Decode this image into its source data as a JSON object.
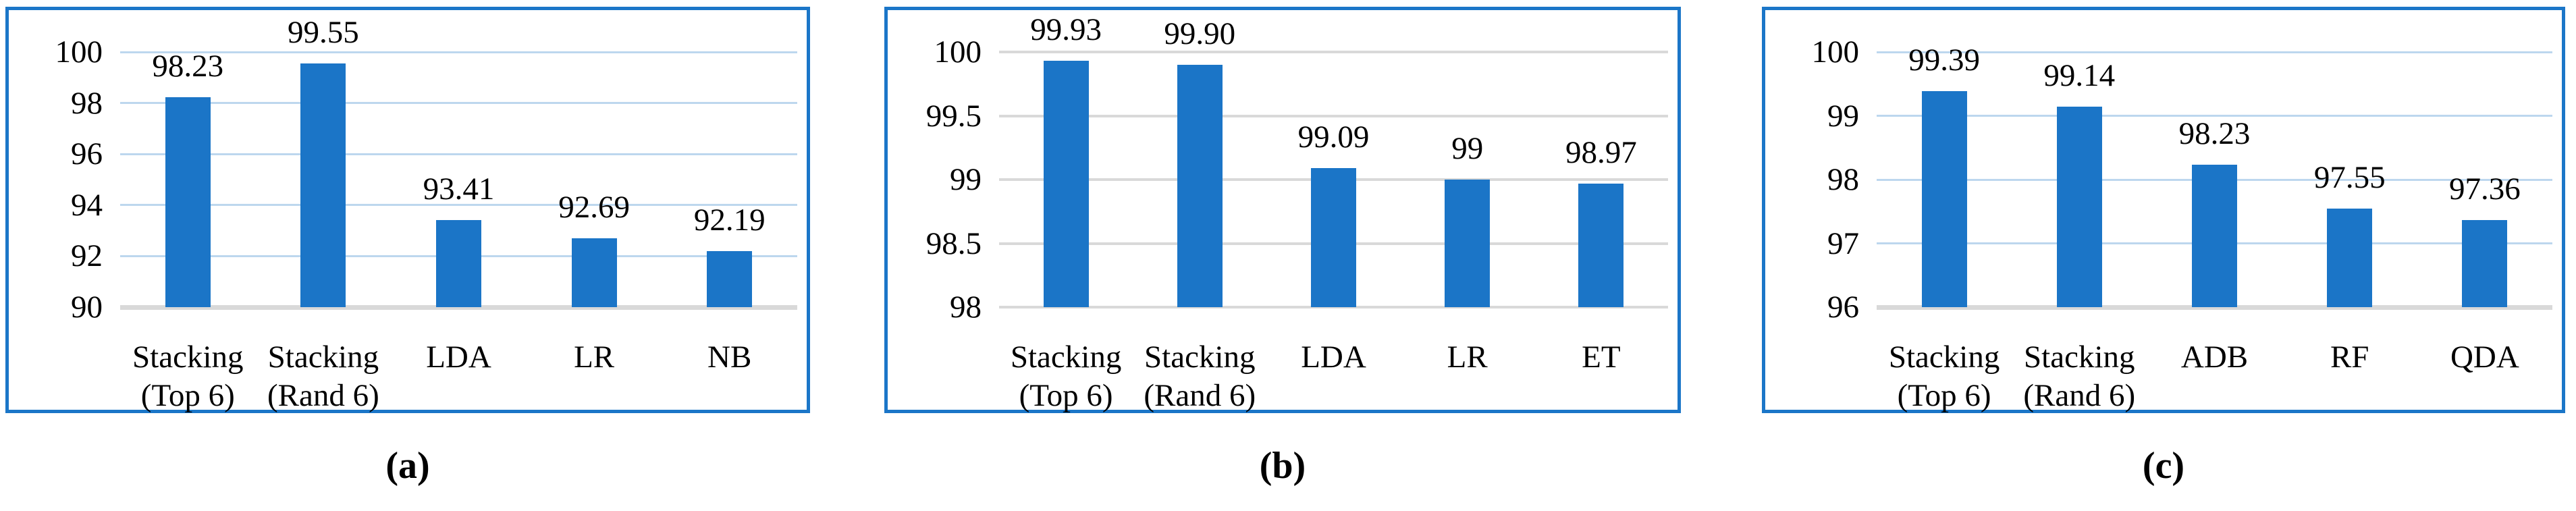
{
  "figure": {
    "captions": {
      "a": "(a)",
      "b": "(b)",
      "c": "(c)"
    }
  },
  "colors": {
    "bar": "#1b75c7",
    "panel_border": "#1b76c8",
    "gridline_light_blue": "#bdd7ee",
    "gridline_gray": "#d9d9d9",
    "baseline_gray": "#d9d9d9",
    "text": "#000000",
    "background": "#ffffff"
  },
  "chart_data": [
    {
      "type": "bar",
      "panel": "a",
      "title": "",
      "xlabel": "",
      "ylabel": "",
      "legend": "none",
      "grid": "horizontal",
      "categories": [
        [
          "Stacking",
          "(Top 6)"
        ],
        [
          "Stacking",
          "(Rand 6)"
        ],
        [
          "LDA"
        ],
        [
          "LR"
        ],
        [
          "NB"
        ]
      ],
      "values": [
        98.23,
        99.55,
        93.41,
        92.69,
        92.19
      ],
      "data_labels": [
        "98.23",
        "99.55",
        "93.41",
        "92.69",
        "92.19"
      ],
      "ylim": [
        90,
        100
      ],
      "yticks": [
        {
          "v": 90,
          "label": "90"
        },
        {
          "v": 92,
          "label": "92"
        },
        {
          "v": 94,
          "label": "94"
        },
        {
          "v": 96,
          "label": "96"
        },
        {
          "v": 98,
          "label": "98"
        },
        {
          "v": 100,
          "label": "100"
        }
      ],
      "grid_line_color": "#bdd7ee",
      "grid_line_width": 3,
      "baseline_color": "#d9d9d9",
      "baseline_width": 7
    },
    {
      "type": "bar",
      "panel": "b",
      "title": "",
      "xlabel": "",
      "ylabel": "",
      "legend": "none",
      "grid": "horizontal",
      "categories": [
        [
          "Stacking",
          "(Top 6)"
        ],
        [
          "Stacking",
          "(Rand 6)"
        ],
        [
          "LDA"
        ],
        [
          "LR"
        ],
        [
          "ET"
        ]
      ],
      "values": [
        99.93,
        99.9,
        99.09,
        99.0,
        98.97
      ],
      "data_labels": [
        "99.93",
        "99.90",
        "99.09",
        "99",
        "98.97"
      ],
      "ylim": [
        98,
        100
      ],
      "yticks": [
        {
          "v": 98,
          "label": "98"
        },
        {
          "v": 98.5,
          "label": "98.5"
        },
        {
          "v": 99,
          "label": "99"
        },
        {
          "v": 99.5,
          "label": "99.5"
        },
        {
          "v": 100,
          "label": "100"
        }
      ],
      "grid_line_color": "#d9d9d9",
      "grid_line_width": 4,
      "baseline_color": "#d9d9d9",
      "baseline_width": 4
    },
    {
      "type": "bar",
      "panel": "c",
      "title": "",
      "xlabel": "",
      "ylabel": "",
      "legend": "none",
      "grid": "horizontal",
      "categories": [
        [
          "Stacking",
          "(Top 6)"
        ],
        [
          "Stacking",
          "(Rand 6)"
        ],
        [
          "ADB"
        ],
        [
          "RF"
        ],
        [
          "QDA"
        ]
      ],
      "values": [
        99.39,
        99.14,
        98.23,
        97.55,
        97.36
      ],
      "data_labels": [
        "99.39",
        "99.14",
        "98.23",
        "97.55",
        "97.36"
      ],
      "ylim": [
        96,
        100
      ],
      "yticks": [
        {
          "v": 96,
          "label": "96"
        },
        {
          "v": 97,
          "label": "97"
        },
        {
          "v": 98,
          "label": "98"
        },
        {
          "v": 99,
          "label": "99"
        },
        {
          "v": 100,
          "label": "100"
        }
      ],
      "grid_line_color": "#bdd7ee",
      "grid_line_width": 3,
      "baseline_color": "#d9d9d9",
      "baseline_width": 7
    }
  ]
}
